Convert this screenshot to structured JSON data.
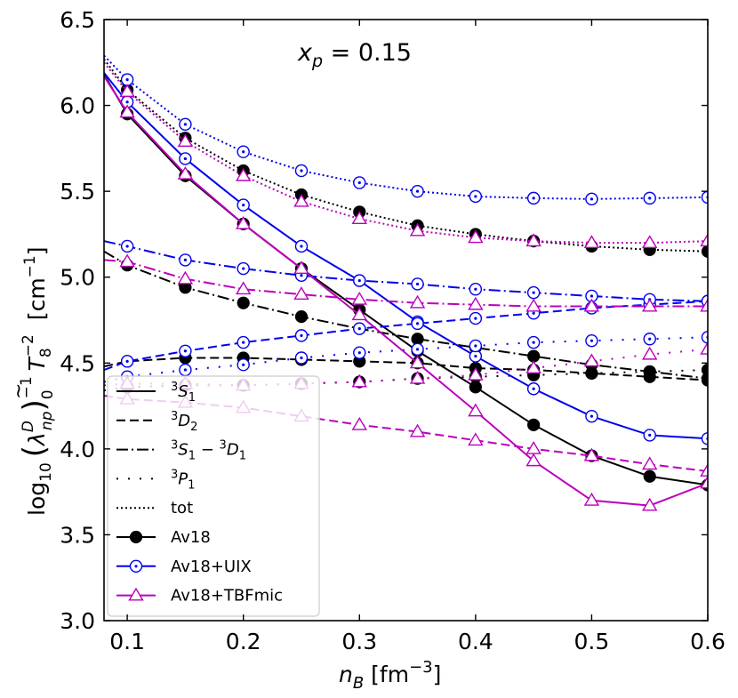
{
  "chart_data": {
    "type": "line",
    "annotation": {
      "var": "x",
      "sub": "p",
      "rest": " = 0.15"
    },
    "xlabel": {
      "main": "n",
      "sub": "B",
      "unit_pre": " [fm",
      "unit_sup": "−3",
      "unit_post": "]"
    },
    "ylabel": {
      "log": "log",
      "log_sub": "10",
      "lambda": "λ",
      "lambda_tilde": "~",
      "lambda_sup": "D",
      "lambda_sub": "np",
      "paren_open": "(",
      "paren_close": ")",
      "paren_sub": "0",
      "paren_sup": "−1",
      "T": "T",
      "T_sub": "8",
      "T_sup": "−2",
      "unit_pre": "[cm",
      "unit_sup": "−1",
      "unit_post": "]"
    },
    "xlim": [
      0.08,
      0.6
    ],
    "ylim": [
      3.0,
      6.5
    ],
    "xticks": [
      0.1,
      0.2,
      0.3,
      0.4,
      0.5,
      0.6
    ],
    "xtick_labels": [
      "0.1",
      "0.2",
      "0.3",
      "0.4",
      "0.5",
      "0.6"
    ],
    "yticks": [
      3.0,
      3.5,
      4.0,
      4.5,
      5.0,
      5.5,
      6.0,
      6.5
    ],
    "ytick_labels": [
      "3.0",
      "3.5",
      "4.0",
      "4.5",
      "5.0",
      "5.5",
      "6.0",
      "6.5"
    ],
    "colors": {
      "Av18": "#000000",
      "Av18+UIX": "#0000ee",
      "Av18+TBFmic": "#bb00bb"
    },
    "channels": [
      "3S1",
      "3D2",
      "3S1-3D1",
      "3P1",
      "tot"
    ],
    "x": [
      0.1,
      0.15,
      0.2,
      0.25,
      0.3,
      0.35,
      0.4,
      0.45,
      0.5,
      0.55,
      0.6
    ],
    "series": [
      {
        "name": "Av18 3S1",
        "model": "Av18",
        "channel": "3S1",
        "start": [
          0.08,
          6.18
        ],
        "values": [
          5.95,
          5.59,
          5.31,
          5.05,
          4.81,
          4.57,
          4.36,
          4.14,
          3.96,
          3.84,
          3.79
        ]
      },
      {
        "name": "Av18 3D2",
        "model": "Av18",
        "channel": "3D2",
        "start": [
          0.08,
          4.48
        ],
        "values": [
          4.51,
          4.53,
          4.53,
          4.52,
          4.51,
          4.5,
          4.47,
          4.46,
          4.44,
          4.42,
          4.4
        ]
      },
      {
        "name": "Av18 3S1-3D1",
        "model": "Av18",
        "channel": "3S1-3D1",
        "start": [
          0.08,
          5.15
        ],
        "values": [
          5.07,
          4.94,
          4.85,
          4.77,
          4.7,
          4.64,
          4.59,
          4.54,
          4.49,
          4.45,
          4.41
        ]
      },
      {
        "name": "Av18 3P1",
        "model": "Av18",
        "channel": "3P1",
        "start": [
          0.08,
          4.34
        ],
        "values": [
          4.36,
          4.37,
          4.37,
          4.38,
          4.39,
          4.41,
          4.42,
          4.43,
          4.44,
          4.45,
          4.46
        ]
      },
      {
        "name": "Av18 tot",
        "model": "Av18",
        "channel": "tot",
        "start": [
          0.08,
          6.27
        ],
        "values": [
          6.09,
          5.81,
          5.62,
          5.48,
          5.38,
          5.3,
          5.25,
          5.21,
          5.18,
          5.16,
          5.15
        ]
      },
      {
        "name": "Av18+UIX 3S1",
        "model": "Av18+UIX",
        "channel": "3S1",
        "start": [
          0.08,
          6.19
        ],
        "values": [
          6.02,
          5.69,
          5.42,
          5.18,
          4.98,
          4.74,
          4.54,
          4.35,
          4.19,
          4.08,
          4.06
        ]
      },
      {
        "name": "Av18+UIX 3D2",
        "model": "Av18+UIX",
        "channel": "3D2",
        "start": [
          0.08,
          4.46
        ],
        "values": [
          4.51,
          4.57,
          4.62,
          4.66,
          4.7,
          4.73,
          4.76,
          4.79,
          4.82,
          4.84,
          4.86
        ]
      },
      {
        "name": "Av18+UIX 3S1-3D1",
        "model": "Av18+UIX",
        "channel": "3S1-3D1",
        "start": [
          0.08,
          5.21
        ],
        "values": [
          5.18,
          5.1,
          5.05,
          5.01,
          4.98,
          4.96,
          4.93,
          4.91,
          4.89,
          4.87,
          4.86
        ]
      },
      {
        "name": "Av18+UIX 3P1",
        "model": "Av18+UIX",
        "channel": "3P1",
        "start": [
          0.08,
          4.39
        ],
        "values": [
          4.42,
          4.46,
          4.49,
          4.53,
          4.56,
          4.58,
          4.6,
          4.62,
          4.63,
          4.64,
          4.65
        ]
      },
      {
        "name": "Av18+UIX tot",
        "model": "Av18+UIX",
        "channel": "tot",
        "start": [
          0.08,
          6.29
        ],
        "values": [
          6.15,
          5.89,
          5.73,
          5.62,
          5.55,
          5.5,
          5.47,
          5.46,
          5.455,
          5.46,
          5.465
        ]
      },
      {
        "name": "Av18+TBFmic 3S1",
        "model": "Av18+TBFmic",
        "channel": "3S1",
        "start": [
          0.08,
          6.17
        ],
        "values": [
          5.96,
          5.6,
          5.31,
          5.05,
          4.78,
          4.5,
          4.22,
          3.93,
          3.7,
          3.67,
          3.8
        ]
      },
      {
        "name": "Av18+TBFmic 3D2",
        "model": "Av18+TBFmic",
        "channel": "3D2",
        "start": [
          0.08,
          4.31
        ],
        "values": [
          4.29,
          4.27,
          4.24,
          4.19,
          4.14,
          4.1,
          4.05,
          4.0,
          3.96,
          3.91,
          3.87
        ]
      },
      {
        "name": "Av18+TBFmic 3S1-3D1",
        "model": "Av18+TBFmic",
        "channel": "3S1-3D1",
        "start": [
          0.08,
          5.1
        ],
        "values": [
          5.09,
          4.99,
          4.93,
          4.9,
          4.87,
          4.85,
          4.84,
          4.83,
          4.83,
          4.83,
          4.83
        ]
      },
      {
        "name": "Av18+TBFmic 3P1",
        "model": "Av18+TBFmic",
        "channel": "3P1",
        "start": [
          0.08,
          4.37
        ],
        "values": [
          4.38,
          4.38,
          4.37,
          4.38,
          4.39,
          4.41,
          4.43,
          4.47,
          4.51,
          4.55,
          4.58
        ]
      },
      {
        "name": "Av18+TBFmic tot",
        "model": "Av18+TBFmic",
        "channel": "tot",
        "start": [
          0.08,
          6.25
        ],
        "values": [
          6.08,
          5.79,
          5.59,
          5.44,
          5.34,
          5.27,
          5.23,
          5.21,
          5.2,
          5.2,
          5.21
        ]
      }
    ],
    "legend": {
      "position": "lower-left",
      "line_entries": [
        {
          "channel": "3S1",
          "sup": "3",
          "letter": "S",
          "sub": "1"
        },
        {
          "channel": "3D2",
          "sup": "3",
          "letter": "D",
          "sub": "2"
        },
        {
          "channel": "3S1-3D1",
          "sup": "3",
          "letter": "S",
          "sub": "1",
          "dash": " − ",
          "sup2": "3",
          "letter2": "D",
          "sub2": "1"
        },
        {
          "channel": "3P1",
          "sup": "3",
          "letter": "P",
          "sub": "1"
        },
        {
          "channel": "tot",
          "label": "tot"
        }
      ],
      "marker_entries": [
        {
          "model": "Av18",
          "label": "Av18"
        },
        {
          "model": "Av18+UIX",
          "label": "Av18+UIX"
        },
        {
          "model": "Av18+TBFmic",
          "label": "Av18+TBFmic"
        }
      ]
    }
  }
}
